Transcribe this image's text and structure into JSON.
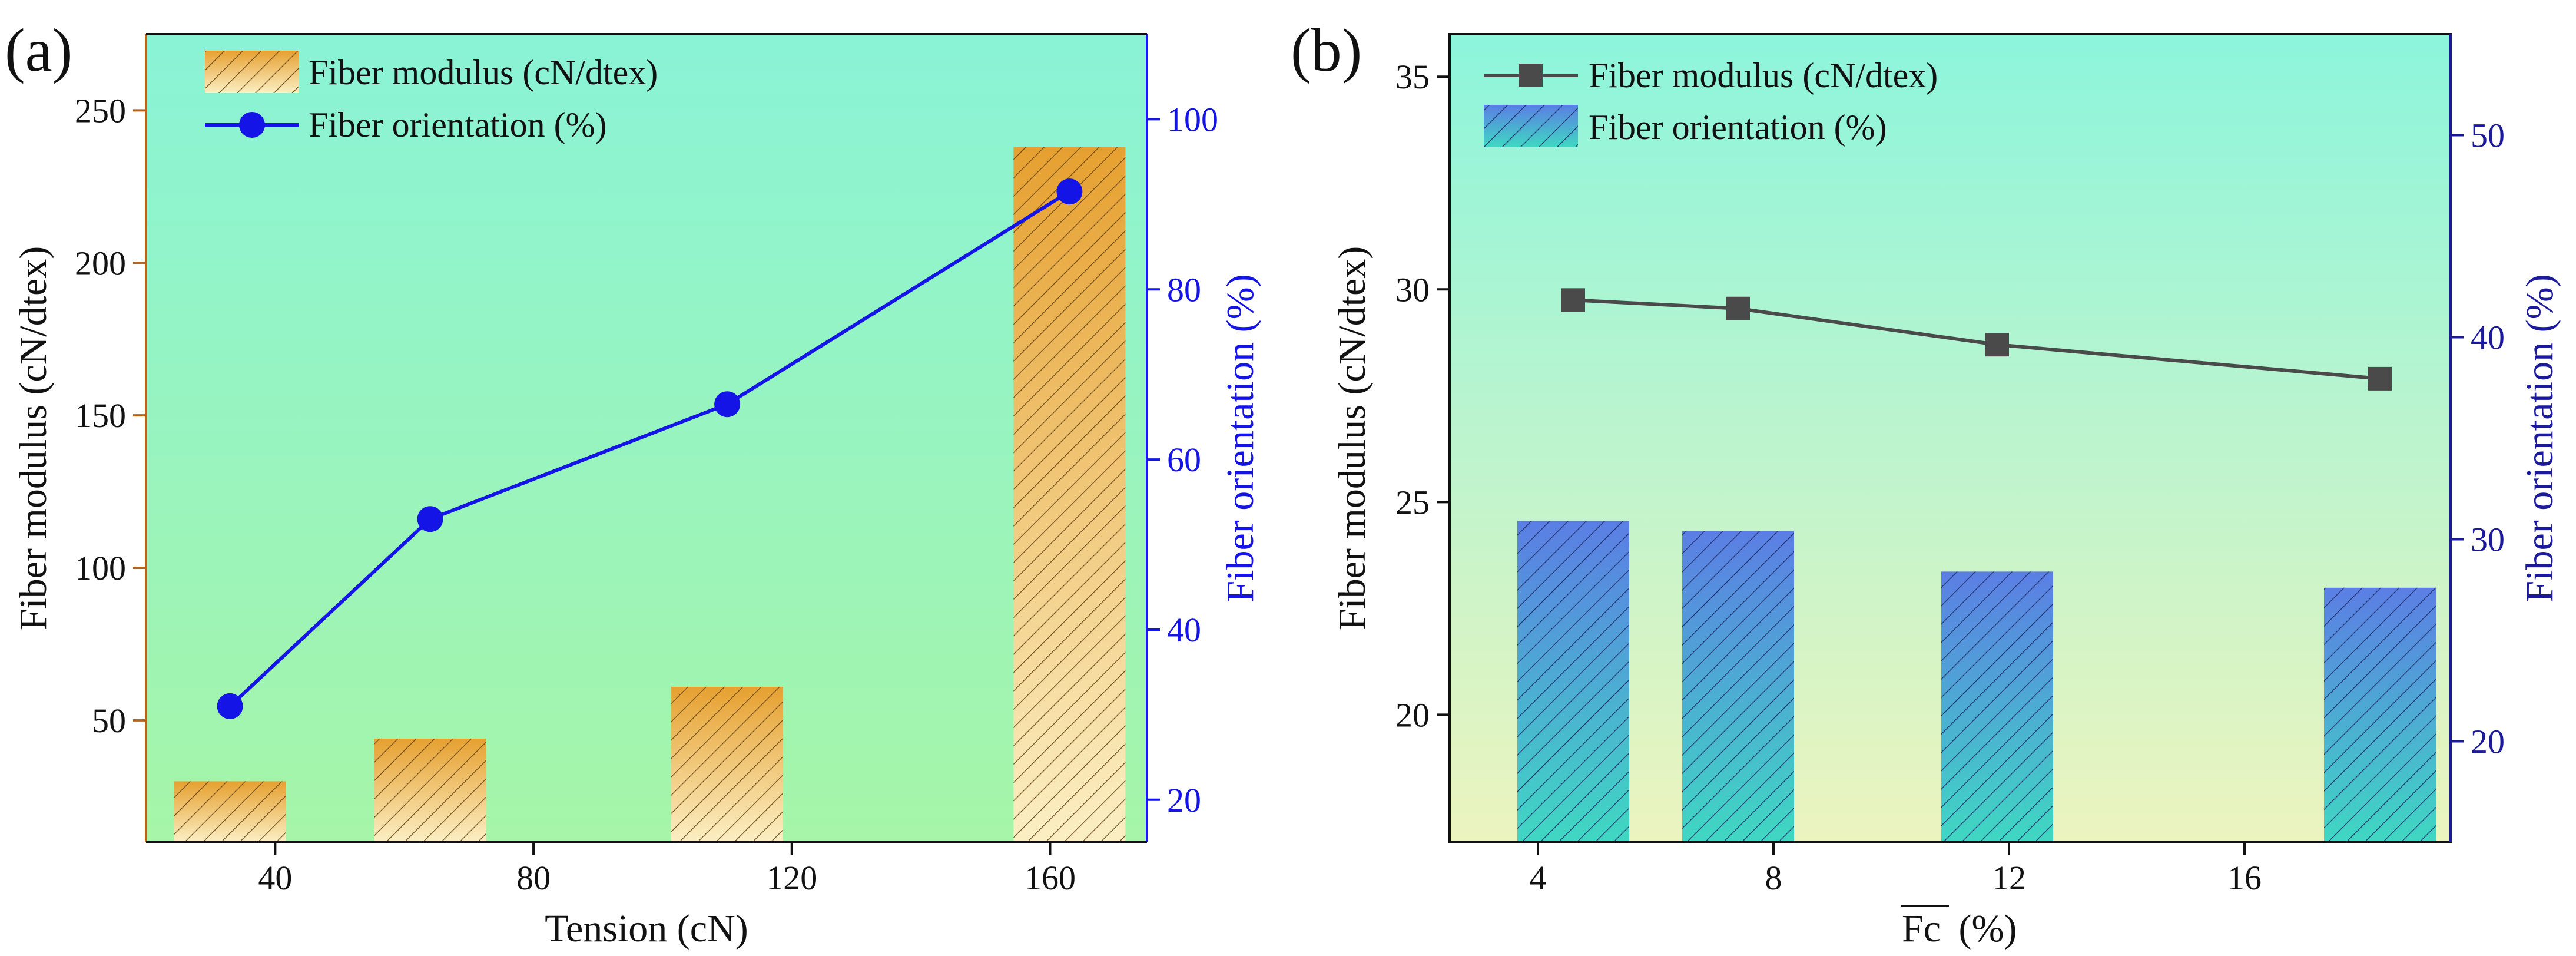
{
  "chart_data": [
    {
      "panel_label": "(a)",
      "type": "bar+line",
      "xlabel": "Tension (cN)",
      "ylabel_left": "Fiber modulus (cN/dtex)",
      "ylabel_right": "Fiber orientation (%)",
      "xlim": [
        20,
        175
      ],
      "xticks": [
        "40",
        "80",
        "120",
        "160"
      ],
      "ylim_left": [
        10,
        275
      ],
      "yticks_left": [
        "50",
        "100",
        "150",
        "200",
        "250"
      ],
      "ylim_right": [
        15,
        110
      ],
      "yticks_right": [
        "20",
        "40",
        "60",
        "80",
        "100"
      ],
      "series": [
        {
          "name": "Fiber modulus (cN/dtex)",
          "kind": "bar",
          "axis": "left",
          "x": [
            33,
            64,
            110,
            163
          ],
          "values": [
            30,
            44,
            61,
            238
          ],
          "color": "#e8a43a"
        },
        {
          "name": "Fiber orientation (%)",
          "kind": "line",
          "axis": "right",
          "x": [
            33,
            64,
            110,
            163
          ],
          "values": [
            31,
            53,
            66.5,
            91.5
          ],
          "color": "#1414e6"
        }
      ],
      "legend": [
        {
          "label": "Fiber modulus (cN/dtex)"
        },
        {
          "label": "Fiber orientation (%)"
        }
      ]
    },
    {
      "panel_label": "(b)",
      "type": "line+bar",
      "xlabel_main": "Fc",
      "xlabel_suffix": " (%)",
      "ylabel_left": "Fiber modulus (cN/dtex)",
      "ylabel_right": "Fiber orientation (%)",
      "xlim": [
        2.5,
        19.5
      ],
      "xticks": [
        "4",
        "8",
        "12",
        "16"
      ],
      "ylim_left": [
        17,
        36
      ],
      "yticks_left": [
        "20",
        "25",
        "30",
        "35"
      ],
      "ylim_right": [
        15,
        55
      ],
      "yticks_right": [
        "20",
        "30",
        "40",
        "50"
      ],
      "series": [
        {
          "name": "Fiber modulus (cN/dtex)",
          "kind": "line",
          "axis": "left",
          "x": [
            4.6,
            7.4,
            11.8,
            18.3
          ],
          "values": [
            29.75,
            29.55,
            28.7,
            27.9
          ],
          "color": "#4a4a4a"
        },
        {
          "name": "Fiber orientation (%)",
          "kind": "bar",
          "axis": "right",
          "x": [
            4.6,
            7.4,
            11.8,
            18.3
          ],
          "values": [
            30.9,
            30.4,
            28.4,
            27.6
          ],
          "color": "#5b7fe0"
        }
      ],
      "legend": [
        {
          "label": "Fiber modulus (cN/dtex)"
        },
        {
          "label": "Fiber orientation (%)"
        }
      ]
    }
  ]
}
